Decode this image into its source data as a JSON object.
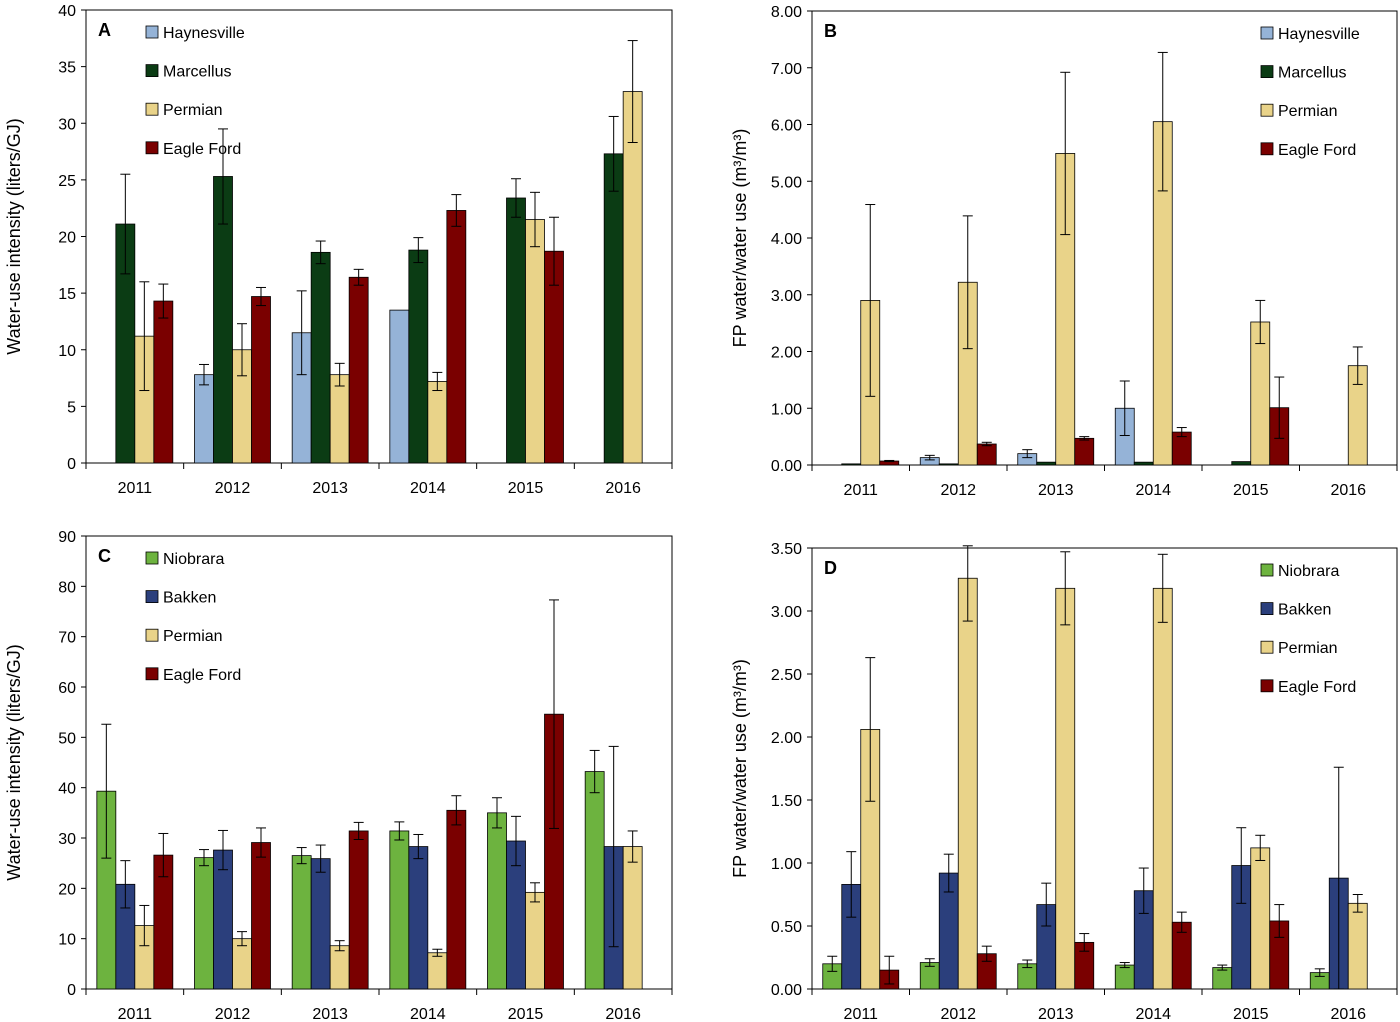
{
  "colors": {
    "Haynesville": "#95b3d7",
    "Marcellus": "#0b3c14",
    "Permian": "#e9d389",
    "Eagle Ford": "#7a0000",
    "Niobrara": "#6db33f",
    "Bakken": "#2b3f7c"
  },
  "chart_data": [
    {
      "type": "bar",
      "panel": "A",
      "ylabel": "Water-use intensity (liters/GJ)",
      "ylim": [
        0,
        40
      ],
      "yticks": [
        "0",
        "5",
        "10",
        "15",
        "20",
        "25",
        "30",
        "35",
        "40"
      ],
      "categories": [
        "2011",
        "2012",
        "2013",
        "2014",
        "2015",
        "2016"
      ],
      "legend_position": "top-left",
      "series": [
        {
          "name": "Haynesville",
          "values": [
            null,
            7.8,
            11.5,
            13.5,
            null,
            null
          ],
          "errors": [
            null,
            0.9,
            3.7,
            null,
            null,
            null
          ]
        },
        {
          "name": "Marcellus",
          "values": [
            21.1,
            25.3,
            18.6,
            18.8,
            23.4,
            27.3
          ],
          "errors": [
            4.4,
            4.2,
            1.0,
            1.1,
            1.7,
            3.3
          ]
        },
        {
          "name": "Permian",
          "values": [
            11.2,
            10.0,
            7.8,
            7.2,
            21.5,
            32.8
          ],
          "errors": [
            4.8,
            2.3,
            1.0,
            0.8,
            2.4,
            4.5
          ]
        },
        {
          "name": "Eagle Ford",
          "values": [
            14.3,
            14.7,
            16.4,
            22.3,
            18.7,
            null
          ],
          "errors": [
            1.5,
            0.8,
            0.7,
            1.4,
            3.0,
            null
          ]
        }
      ]
    },
    {
      "type": "bar",
      "panel": "B",
      "ylabel": "FP water/water use (m³/m³)",
      "ylim": [
        0,
        8
      ],
      "yticks": [
        "0.00",
        "1.00",
        "2.00",
        "3.00",
        "4.00",
        "5.00",
        "6.00",
        "7.00",
        "8.00"
      ],
      "categories": [
        "2011",
        "2012",
        "2013",
        "2014",
        "2015",
        "2016"
      ],
      "legend_position": "top-right",
      "series": [
        {
          "name": "Haynesville",
          "values": [
            null,
            0.13,
            0.2,
            1.0,
            null,
            null
          ],
          "errors": [
            null,
            0.04,
            0.07,
            0.48,
            null,
            null
          ]
        },
        {
          "name": "Marcellus",
          "values": [
            0.02,
            0.02,
            0.05,
            0.05,
            0.06,
            null
          ],
          "errors": [
            null,
            null,
            null,
            null,
            null,
            null
          ]
        },
        {
          "name": "Permian",
          "values": [
            2.9,
            3.22,
            5.49,
            6.05,
            2.52,
            1.75
          ],
          "errors": [
            1.69,
            1.17,
            1.43,
            1.22,
            0.38,
            0.33
          ]
        },
        {
          "name": "Eagle Ford",
          "values": [
            0.07,
            0.37,
            0.47,
            0.58,
            1.01,
            null
          ],
          "errors": [
            0.01,
            0.03,
            0.03,
            0.08,
            0.54,
            null
          ]
        }
      ]
    },
    {
      "type": "bar",
      "panel": "C",
      "ylabel": "Water-use intensity (liters/GJ)",
      "ylim": [
        0,
        90
      ],
      "yticks": [
        "0",
        "10",
        "20",
        "30",
        "40",
        "50",
        "60",
        "70",
        "80",
        "90"
      ],
      "categories": [
        "2011",
        "2012",
        "2013",
        "2014",
        "2015",
        "2016"
      ],
      "legend_position": "top-left",
      "series": [
        {
          "name": "Niobrara",
          "values": [
            39.3,
            26.1,
            26.5,
            31.4,
            35.0,
            43.2
          ],
          "errors": [
            13.3,
            1.6,
            1.6,
            1.8,
            3.0,
            4.2
          ]
        },
        {
          "name": "Bakken",
          "values": [
            20.8,
            27.6,
            25.9,
            28.3,
            29.4,
            28.3
          ],
          "errors": [
            4.7,
            3.9,
            2.7,
            2.4,
            4.9,
            19.9
          ]
        },
        {
          "name": "Permian",
          "values": [
            12.6,
            10.0,
            8.6,
            7.2,
            19.2,
            28.3
          ],
          "errors": [
            4.0,
            1.4,
            1.0,
            0.7,
            1.9,
            3.1
          ]
        },
        {
          "name": "Eagle Ford",
          "values": [
            26.6,
            29.1,
            31.4,
            35.5,
            54.6,
            null
          ],
          "errors": [
            4.3,
            2.9,
            1.7,
            2.9,
            22.7,
            null
          ]
        }
      ]
    },
    {
      "type": "bar",
      "panel": "D",
      "ylabel": "FP water/water use (m³/m³)",
      "ylim": [
        0,
        3.5
      ],
      "yticks": [
        "0.00",
        "0.50",
        "1.00",
        "1.50",
        "2.00",
        "2.50",
        "3.00",
        "3.50"
      ],
      "categories": [
        "2011",
        "2012",
        "2013",
        "2014",
        "2015",
        "2016"
      ],
      "legend_position": "top-right",
      "series": [
        {
          "name": "Niobrara",
          "values": [
            0.2,
            0.21,
            0.2,
            0.19,
            0.17,
            0.13
          ],
          "errors": [
            0.06,
            0.03,
            0.03,
            0.02,
            0.02,
            0.03
          ]
        },
        {
          "name": "Bakken",
          "values": [
            0.83,
            0.92,
            0.67,
            0.78,
            0.98,
            0.88
          ],
          "errors": [
            0.26,
            0.15,
            0.17,
            0.18,
            0.3,
            0.88
          ]
        },
        {
          "name": "Permian",
          "values": [
            2.06,
            3.26,
            3.18,
            3.18,
            1.12,
            0.68
          ],
          "errors": [
            0.57,
            0.34,
            0.29,
            0.27,
            0.1,
            0.07
          ]
        },
        {
          "name": "Eagle Ford",
          "values": [
            0.15,
            0.28,
            0.37,
            0.53,
            0.54,
            null
          ],
          "errors": [
            0.11,
            0.06,
            0.07,
            0.08,
            0.13,
            null
          ]
        }
      ]
    }
  ]
}
